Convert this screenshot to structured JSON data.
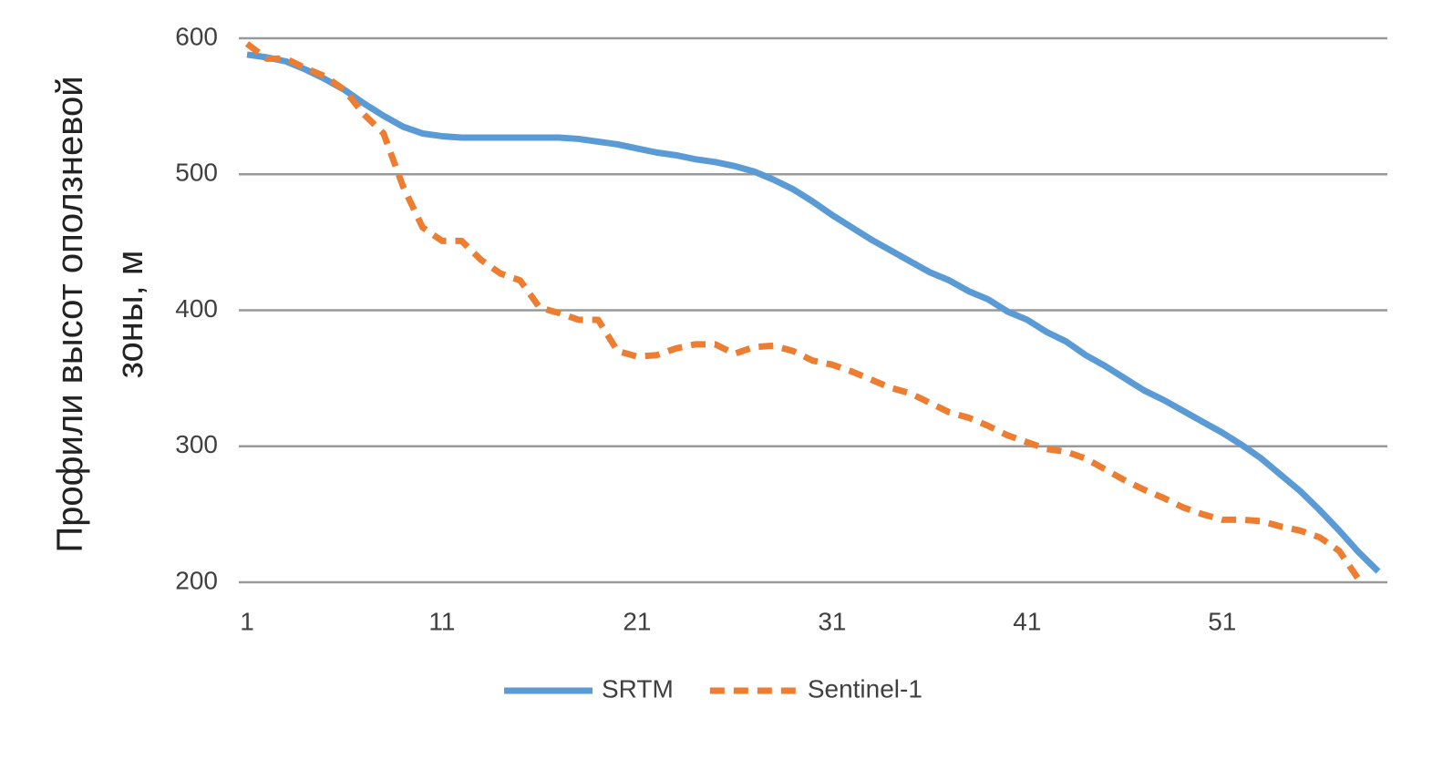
{
  "chart_data": {
    "type": "line",
    "ylabel": "Профили высот оползневой зоны, м",
    "x": [
      1,
      2,
      3,
      4,
      5,
      6,
      7,
      8,
      9,
      10,
      11,
      12,
      13,
      14,
      15,
      16,
      17,
      18,
      19,
      20,
      21,
      22,
      23,
      24,
      25,
      26,
      27,
      28,
      29,
      30,
      31,
      32,
      33,
      34,
      35,
      36,
      37,
      38,
      39,
      40,
      41,
      42,
      43,
      44,
      45,
      46,
      47,
      48,
      49,
      50,
      51,
      52,
      53,
      54,
      55,
      56,
      57,
      58,
      59
    ],
    "series": [
      {
        "name": "SRTM",
        "color": "#5b9bd5",
        "dash": false,
        "values": [
          588,
          586,
          583,
          577,
          570,
          562,
          552,
          543,
          535,
          530,
          528,
          527,
          527,
          527,
          527,
          527,
          527,
          526,
          524,
          522,
          519,
          516,
          514,
          511,
          509,
          506,
          502,
          496,
          489,
          480,
          470,
          461,
          452,
          444,
          436,
          428,
          422,
          414,
          408,
          399,
          393,
          384,
          377,
          367,
          359,
          350,
          341,
          334,
          326,
          318,
          310,
          301,
          291,
          279,
          267,
          253,
          238,
          222,
          208
        ]
      },
      {
        "name": "Sentinel-1",
        "color": "#ed7d31",
        "dash": true,
        "values": [
          596,
          585,
          585,
          578,
          572,
          562,
          544,
          530,
          491,
          461,
          451,
          451,
          437,
          427,
          422,
          402,
          398,
          393,
          393,
          370,
          366,
          367,
          372,
          375,
          375,
          368,
          373,
          374,
          370,
          363,
          360,
          355,
          349,
          343,
          339,
          332,
          325,
          321,
          315,
          308,
          303,
          298,
          296,
          291,
          283,
          275,
          268,
          262,
          255,
          250,
          246,
          246,
          245,
          241,
          238,
          233,
          223,
          202,
          null
        ]
      }
    ],
    "xlim": [
      1,
      59
    ],
    "xticks": [
      1,
      11,
      21,
      31,
      41,
      51
    ],
    "ylim": [
      200,
      600
    ],
    "yticks": [
      200,
      300,
      400,
      500,
      600
    ],
    "grid": true,
    "legend": "bottom"
  }
}
